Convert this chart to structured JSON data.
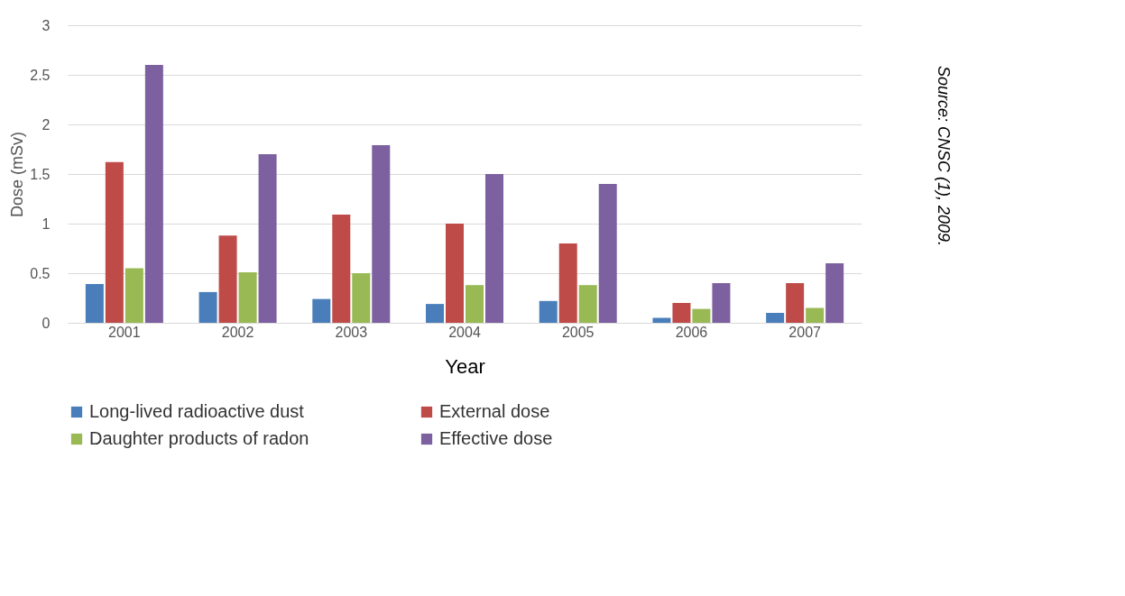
{
  "chart_data": {
    "type": "bar",
    "xlabel": "Year",
    "ylabel": "Dose (mSv)",
    "categories": [
      "2001",
      "2002",
      "2003",
      "2004",
      "2005",
      "2006",
      "2007"
    ],
    "series": [
      {
        "name": "Long-lived radioactive dust",
        "color": "#4a7ebb",
        "values": [
          0.39,
          0.31,
          0.24,
          0.19,
          0.22,
          0.05,
          0.1
        ]
      },
      {
        "name": "External dose",
        "color": "#be4b48",
        "values": [
          1.62,
          0.88,
          1.09,
          1.0,
          0.8,
          0.2,
          0.4
        ]
      },
      {
        "name": "Daughter products of radon",
        "color": "#98b954",
        "values": [
          0.55,
          0.51,
          0.5,
          0.38,
          0.38,
          0.14,
          0.15
        ]
      },
      {
        "name": "Effective dose",
        "color": "#7d60a0",
        "values": [
          2.6,
          1.7,
          1.79,
          1.5,
          1.4,
          0.4,
          0.6
        ]
      }
    ],
    "ylim": [
      0,
      3
    ],
    "yticks": [
      0,
      0.5,
      1,
      1.5,
      2,
      2.5,
      3
    ],
    "grid": "y",
    "legend": "bottom",
    "annotations": [
      "Source: CNSC (1), 2009."
    ]
  }
}
